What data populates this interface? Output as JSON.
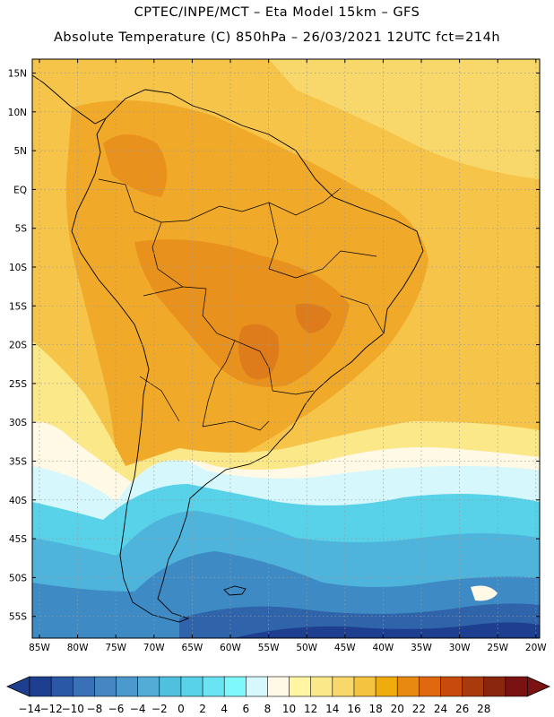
{
  "header": {
    "line1": "CPTEC/INPE/MCT –  Eta Model 15km – GFS",
    "line2": "Absolute Temperature (C) 850hPa – 26/03/2021 12UTC fct=214h"
  },
  "axes": {
    "lat_labels": [
      "15N",
      "10N",
      "5N",
      "EQ",
      "5S",
      "10S",
      "15S",
      "20S",
      "25S",
      "30S",
      "35S",
      "40S",
      "45S",
      "50S",
      "55S"
    ],
    "lon_labels": [
      "85W",
      "80W",
      "75W",
      "70W",
      "65W",
      "60W",
      "55W",
      "50W",
      "45W",
      "40W",
      "35W",
      "30W",
      "25W",
      "20W"
    ]
  },
  "colorbar": {
    "labels": [
      "−14",
      "−12",
      "−10",
      "−8",
      "−6",
      "−4",
      "−2",
      "0",
      "2",
      "4",
      "6",
      "8",
      "10",
      "12",
      "14",
      "16",
      "18",
      "20",
      "22",
      "24",
      "26",
      "28"
    ],
    "colors": [
      "#1e3f8f",
      "#2b58a6",
      "#3a70b6",
      "#4687c2",
      "#4c9acd",
      "#52acd6",
      "#4fc0dd",
      "#58d2e8",
      "#6ae4f2",
      "#7ff8fc",
      "#d6f7fb",
      "#fff9e6",
      "#fff5a3",
      "#fbe889",
      "#f8d86a",
      "#f4c340",
      "#f0ab0c",
      "#e88a10",
      "#e0680e",
      "#c64b0c",
      "#a93a0e",
      "#8a250e",
      "#7a1212"
    ],
    "under_color": "#1e3f8f",
    "over_color": "#7a1212"
  },
  "map_colors": {
    "ocean_warm": "#f5c448",
    "land_warm": "#f0a928",
    "hot": "#e8921d",
    "very_hot": "#de7c1c",
    "mild": "#f8d86a",
    "pale": "#fbe889",
    "cream": "#fff9e6",
    "ice": "#d6f7fb",
    "cyan": "#58d2e8",
    "sky": "#4fb4dc",
    "mid_blue": "#3e8ac4",
    "deep_blue": "#2f63aa",
    "navy": "#1e3f8f",
    "outline": "#000000",
    "grid": "#9a9a9a"
  }
}
